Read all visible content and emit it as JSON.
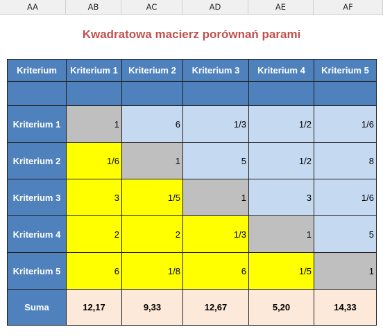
{
  "columns": [
    "AA",
    "AB",
    "AC",
    "AD",
    "AE",
    "AF"
  ],
  "title": "Kwadratowa macierz porównań parami",
  "header": [
    "Kriterium",
    "Kriterium 1",
    "Kriterium 2",
    "Kriterium 3",
    "Kriterium 4",
    "Kriterium 5"
  ],
  "rows": [
    {
      "label": "Kriterium 1",
      "cells": [
        "1",
        "6",
        "1/3",
        "1/2",
        "1/6"
      ]
    },
    {
      "label": "Kriterium 2",
      "cells": [
        "1/6",
        "1",
        "5",
        "1/2",
        "8"
      ]
    },
    {
      "label": "Kriterium 3",
      "cells": [
        "3",
        "1/5",
        "1",
        "3",
        "1/6"
      ]
    },
    {
      "label": "Kriterium 4",
      "cells": [
        "2",
        "2",
        "1/3",
        "1",
        "5"
      ]
    },
    {
      "label": "Kriterium 5",
      "cells": [
        "6",
        "1/8",
        "6",
        "1/5",
        "1"
      ]
    }
  ],
  "sum_label": "Suma",
  "sums": [
    "12,17",
    "9,33",
    "12,67",
    "5,20",
    "14,33"
  ],
  "colors": {
    "header": "#4f81bd",
    "diagonal": "#bfbfbf",
    "lower": "#ffff00",
    "upper": "#c5d9f1",
    "sum": "#fde9d9",
    "title": "#c0504d"
  }
}
